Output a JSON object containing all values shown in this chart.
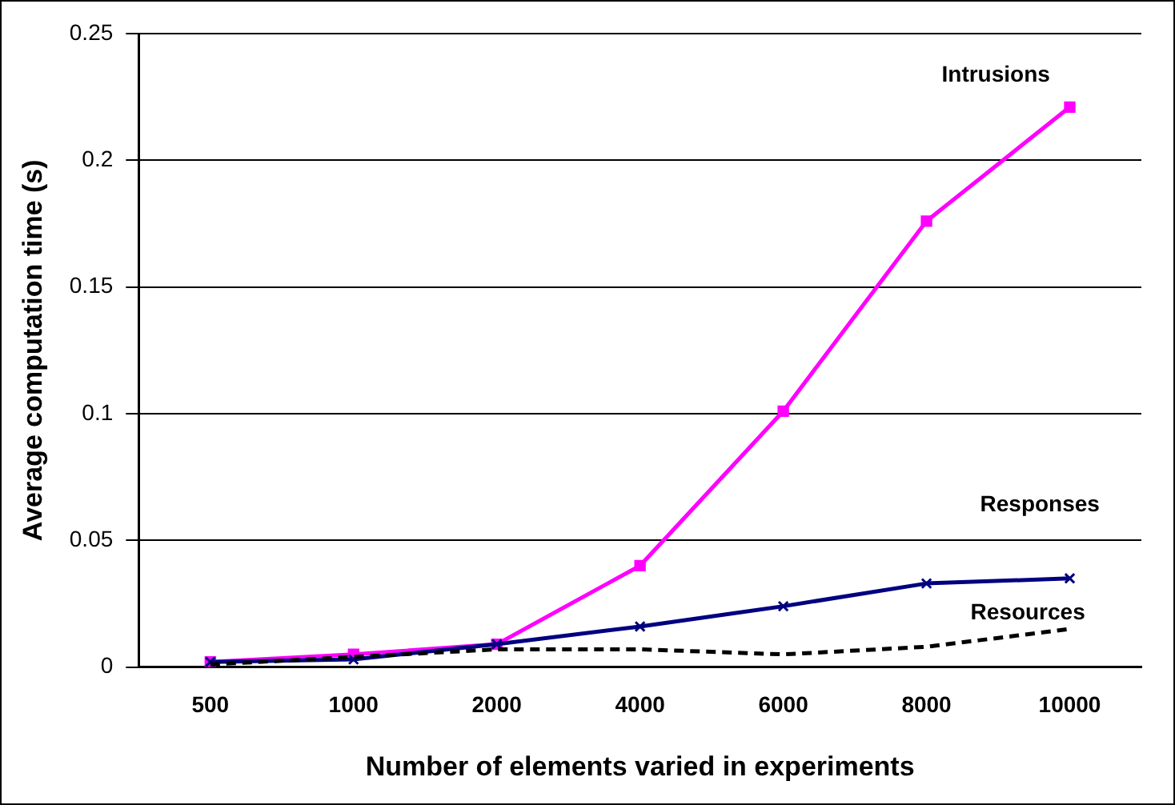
{
  "chart_data": {
    "type": "line",
    "xlabel": "Number of elements varied in experiments",
    "ylabel": "Average computation time (s)",
    "categories": [
      "500",
      "1000",
      "2000",
      "4000",
      "6000",
      "8000",
      "10000"
    ],
    "series": [
      {
        "name": "Intrusions",
        "color": "#ff00ff",
        "marker": "square",
        "line_style": "solid",
        "values": [
          0.002,
          0.005,
          0.009,
          0.04,
          0.101,
          0.176,
          0.221
        ]
      },
      {
        "name": "Responses",
        "color": "#000080",
        "marker": "cross",
        "line_style": "solid",
        "values": [
          0.002,
          0.003,
          0.009,
          0.016,
          0.024,
          0.033,
          0.035
        ]
      },
      {
        "name": "Resources",
        "color": "#000000",
        "marker": "none",
        "line_style": "dashed",
        "values": [
          0.001,
          0.004,
          0.007,
          0.007,
          0.005,
          0.008,
          0.015
        ]
      }
    ],
    "ylim": [
      0,
      0.25
    ],
    "yticks": [
      0,
      0.05,
      0.1,
      0.15,
      0.2,
      0.25
    ],
    "grid": "y",
    "legend": false
  }
}
